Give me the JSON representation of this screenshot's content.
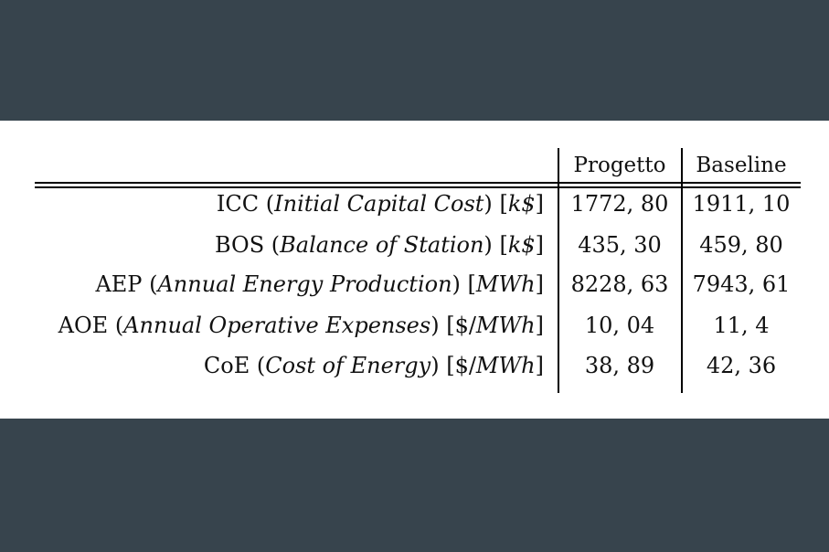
{
  "table": {
    "columns": [
      "Progetto",
      "Baseline"
    ],
    "rows": [
      {
        "abbr": "ICC",
        "open": "(",
        "full": "Initial Capital Cost",
        "close": ")",
        "unit_pre": "[",
        "unit": "k$",
        "unit_post": "]",
        "values": [
          "1772, 80",
          "1911, 10"
        ]
      },
      {
        "abbr": "BOS",
        "open": "(",
        "full": "Balance of Station",
        "close": ")",
        "unit_pre": "[",
        "unit": "k$",
        "unit_post": "]",
        "values": [
          "435, 30",
          "459, 80"
        ]
      },
      {
        "abbr": "AEP",
        "open": "(",
        "full": "Annual Energy Production",
        "close": ")",
        "unit_pre": "[",
        "unit": "MWh",
        "unit_post": "]",
        "values": [
          "8228, 63",
          "7943, 61"
        ]
      },
      {
        "abbr": "AOE",
        "open": "(",
        "full": "Annual Operative Expenses",
        "close": ")",
        "unit_pre": "[$/",
        "unit": "MWh",
        "unit_post": "]",
        "values": [
          "10, 04",
          "11, 4"
        ]
      },
      {
        "abbr": "CoE",
        "open": "(",
        "full": "Cost of Energy",
        "close": ")",
        "unit_pre": "[$/",
        "unit": "MWh",
        "unit_post": "]",
        "values": [
          "38, 89",
          "42, 36"
        ]
      }
    ]
  }
}
